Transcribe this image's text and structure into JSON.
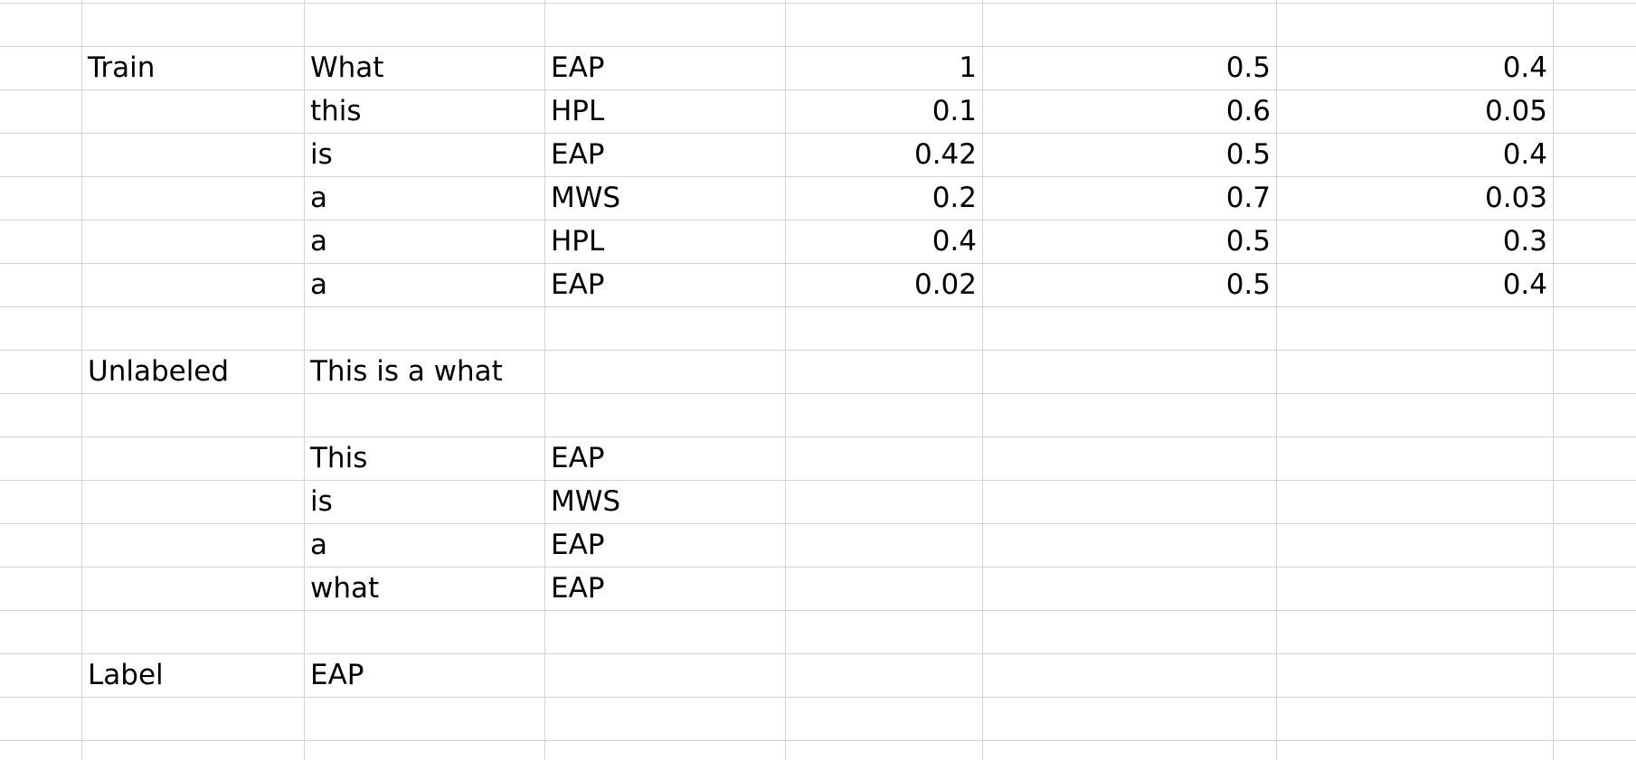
{
  "train": {
    "label": "Train",
    "rows": [
      {
        "word": "What",
        "author": "EAP",
        "v1": "1",
        "v2": "0.5",
        "v3": "0.4"
      },
      {
        "word": "this",
        "author": "HPL",
        "v1": "0.1",
        "v2": "0.6",
        "v3": "0.05"
      },
      {
        "word": "is",
        "author": "EAP",
        "v1": "0.42",
        "v2": "0.5",
        "v3": "0.4"
      },
      {
        "word": "a",
        "author": "MWS",
        "v1": "0.2",
        "v2": "0.7",
        "v3": "0.03"
      },
      {
        "word": "a",
        "author": "HPL",
        "v1": "0.4",
        "v2": "0.5",
        "v3": "0.3"
      },
      {
        "word": "a",
        "author": "EAP",
        "v1": "0.02",
        "v2": "0.5",
        "v3": "0.4"
      }
    ]
  },
  "unlabeled": {
    "label": "Unlabeled",
    "sentence": "This is a what",
    "rows": [
      {
        "word": "This",
        "author": "EAP"
      },
      {
        "word": "is",
        "author": "MWS"
      },
      {
        "word": "a",
        "author": "EAP"
      },
      {
        "word": "what",
        "author": "EAP"
      }
    ]
  },
  "result": {
    "label": "Label",
    "value": "EAP"
  }
}
